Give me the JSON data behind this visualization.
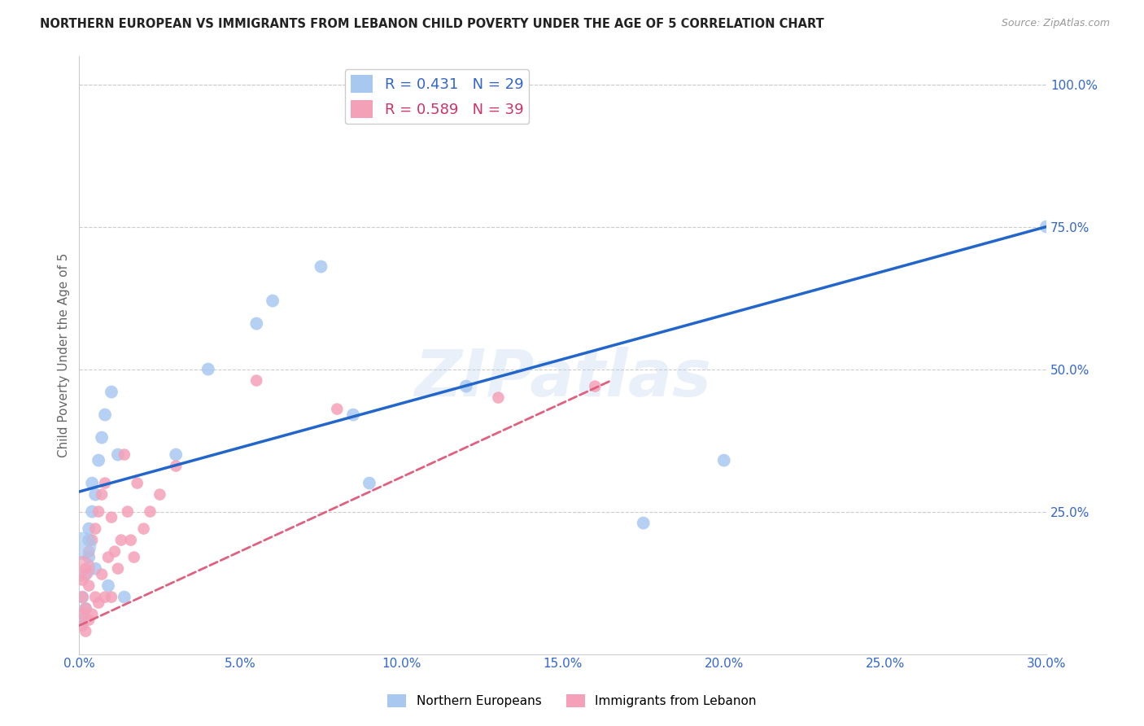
{
  "title": "NORTHERN EUROPEAN VS IMMIGRANTS FROM LEBANON CHILD POVERTY UNDER THE AGE OF 5 CORRELATION CHART",
  "source": "Source: ZipAtlas.com",
  "ylabel": "Child Poverty Under the Age of 5",
  "xlim": [
    0.0,
    0.3
  ],
  "ylim": [
    0.0,
    1.05
  ],
  "xtick_labels": [
    "0.0%",
    "5.0%",
    "10.0%",
    "15.0%",
    "20.0%",
    "25.0%",
    "30.0%"
  ],
  "xtick_values": [
    0.0,
    0.05,
    0.1,
    0.15,
    0.2,
    0.25,
    0.3
  ],
  "ytick_labels": [
    "100.0%",
    "75.0%",
    "50.0%",
    "25.0%"
  ],
  "ytick_values": [
    1.0,
    0.75,
    0.5,
    0.25
  ],
  "blue_R": 0.431,
  "blue_N": 29,
  "pink_R": 0.589,
  "pink_N": 39,
  "blue_color": "#a8c8f0",
  "pink_color": "#f4a0b8",
  "blue_line_color": "#2266cc",
  "pink_line_color": "#e06080",
  "watermark": "ZIPatlas",
  "legend_label_blue": "Northern Europeans",
  "legend_label_pink": "Immigrants from Lebanon",
  "blue_line_x0": 0.0,
  "blue_line_y0": 0.285,
  "blue_line_x1": 0.3,
  "blue_line_y1": 0.75,
  "pink_line_x0": 0.0,
  "pink_line_y0": 0.05,
  "pink_line_x1": 0.165,
  "pink_line_y1": 0.48,
  "blue_scatter_x": [
    0.001,
    0.001,
    0.002,
    0.002,
    0.003,
    0.003,
    0.003,
    0.004,
    0.004,
    0.005,
    0.005,
    0.006,
    0.007,
    0.008,
    0.009,
    0.01,
    0.012,
    0.014,
    0.03,
    0.04,
    0.055,
    0.06,
    0.075,
    0.085,
    0.09,
    0.12,
    0.175,
    0.2,
    0.3
  ],
  "blue_scatter_y": [
    0.06,
    0.1,
    0.08,
    0.14,
    0.17,
    0.2,
    0.22,
    0.25,
    0.3,
    0.15,
    0.28,
    0.34,
    0.38,
    0.42,
    0.12,
    0.46,
    0.35,
    0.1,
    0.35,
    0.5,
    0.58,
    0.62,
    0.68,
    0.42,
    0.3,
    0.47,
    0.23,
    0.34,
    0.75
  ],
  "blue_scatter_large_x": [
    0.001
  ],
  "blue_scatter_large_y": [
    0.19
  ],
  "pink_scatter_x": [
    0.001,
    0.001,
    0.001,
    0.001,
    0.002,
    0.002,
    0.002,
    0.003,
    0.003,
    0.003,
    0.004,
    0.004,
    0.005,
    0.005,
    0.006,
    0.006,
    0.007,
    0.007,
    0.008,
    0.008,
    0.009,
    0.01,
    0.01,
    0.011,
    0.012,
    0.013,
    0.014,
    0.015,
    0.016,
    0.017,
    0.018,
    0.02,
    0.022,
    0.025,
    0.03,
    0.055,
    0.08,
    0.13,
    0.16
  ],
  "pink_scatter_y": [
    0.05,
    0.07,
    0.1,
    0.13,
    0.04,
    0.08,
    0.15,
    0.06,
    0.12,
    0.18,
    0.07,
    0.2,
    0.1,
    0.22,
    0.09,
    0.25,
    0.14,
    0.28,
    0.1,
    0.3,
    0.17,
    0.1,
    0.24,
    0.18,
    0.15,
    0.2,
    0.35,
    0.25,
    0.2,
    0.17,
    0.3,
    0.22,
    0.25,
    0.28,
    0.33,
    0.48,
    0.43,
    0.45,
    0.47
  ],
  "pink_scatter_large_x": [
    0.001
  ],
  "pink_scatter_large_y": [
    0.15
  ]
}
